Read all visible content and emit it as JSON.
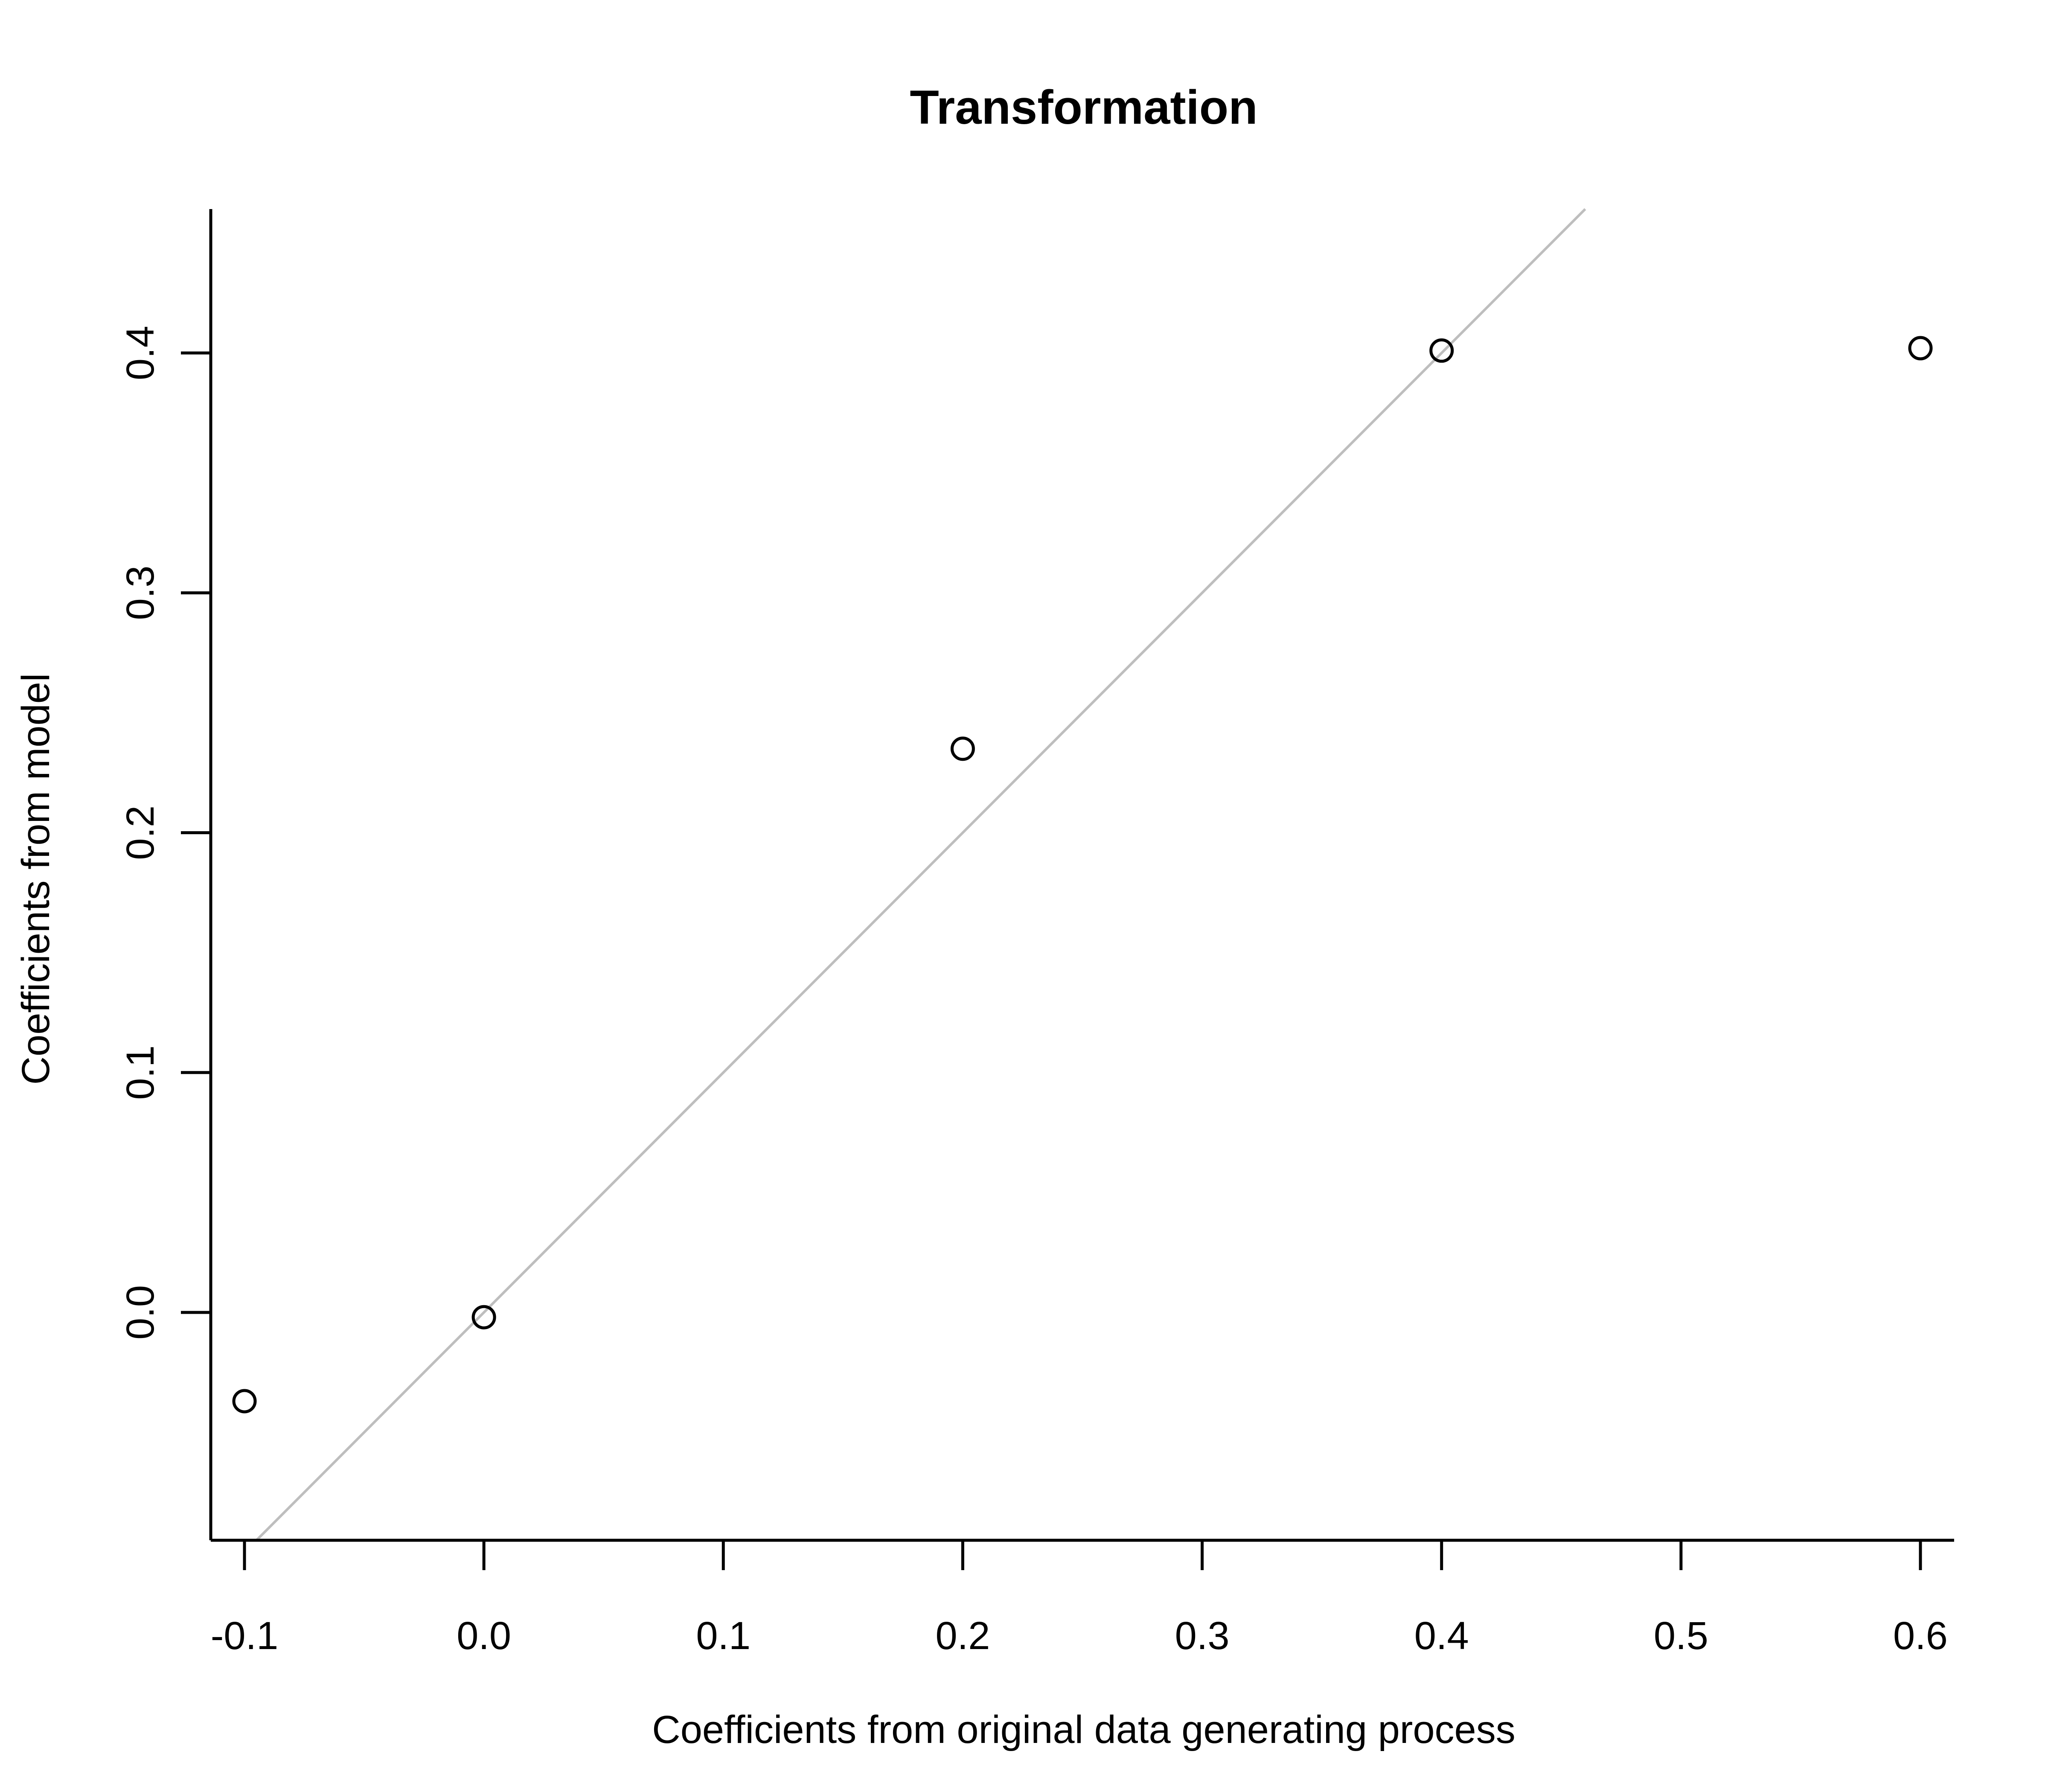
{
  "chart_data": {
    "type": "scatter",
    "title": "Transformation",
    "xlabel": "Coefficients from original data generating process",
    "ylabel": "Coefficients from model",
    "xlim": [
      -0.1,
      0.6
    ],
    "ylim": [
      -0.095,
      0.46
    ],
    "x_ticks": [
      -0.1,
      0.0,
      0.1,
      0.2,
      0.3,
      0.4,
      0.5,
      0.6
    ],
    "x_tick_labels": [
      "-0.1",
      "0.0",
      "0.1",
      "0.2",
      "0.3",
      "0.4",
      "0.5",
      "0.6"
    ],
    "y_ticks": [
      0.0,
      0.1,
      0.2,
      0.3,
      0.4
    ],
    "y_tick_labels": [
      "0.0",
      "0.1",
      "0.2",
      "0.3",
      "0.4"
    ],
    "points": [
      {
        "x": -0.1,
        "y": -0.037
      },
      {
        "x": 0.0,
        "y": -0.002
      },
      {
        "x": 0.2,
        "y": 0.235
      },
      {
        "x": 0.4,
        "y": 0.401
      },
      {
        "x": 0.6,
        "y": 0.402
      }
    ],
    "reference_line": {
      "slope": 1,
      "intercept": 0,
      "color": "#bebebe"
    },
    "point_color": "#000000",
    "grid": false,
    "legend": "none"
  }
}
